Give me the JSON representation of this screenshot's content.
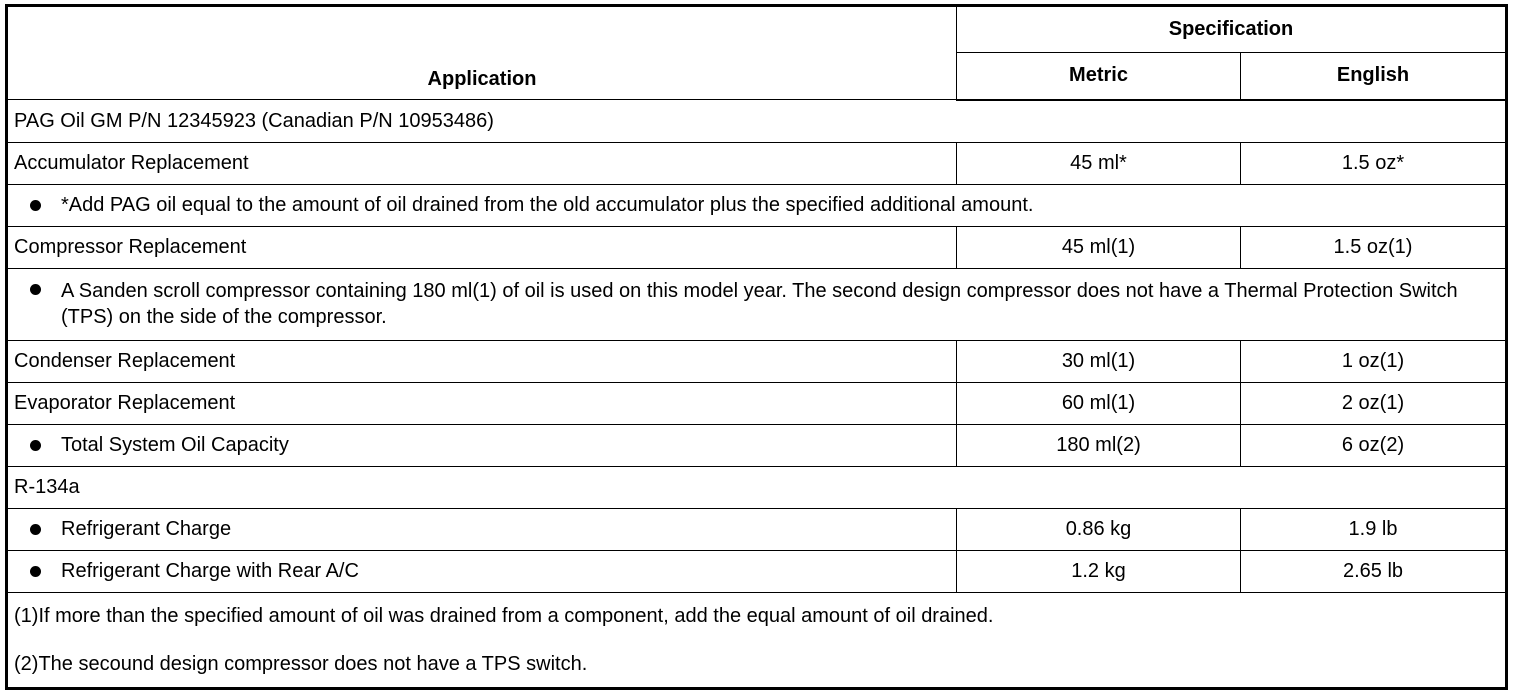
{
  "header": {
    "application": "Application",
    "specification": "Specification",
    "metric": "Metric",
    "english": "English"
  },
  "sections": {
    "pag": "PAG Oil GM P/N 12345923 (Canadian P/N 10953486)",
    "r134a": "R-134a"
  },
  "rows": [
    {
      "app": "Accumulator Replacement",
      "metric": "45 ml*",
      "english": "1.5 oz*"
    },
    {
      "app": "Compressor Replacement",
      "metric": "45 ml(1)",
      "english": "1.5 oz(1)"
    },
    {
      "app": "Condenser Replacement",
      "metric": "30 ml(1)",
      "english": "1 oz(1)"
    },
    {
      "app": "Evaporator Replacement",
      "metric": "60 ml(1)",
      "english": "2 oz(1)"
    },
    {
      "app": "Total System Oil Capacity",
      "metric": "180 ml(2)",
      "english": "6 oz(2)"
    },
    {
      "app": "Refrigerant Charge",
      "metric": "0.86 kg",
      "english": "1.9 lb"
    },
    {
      "app": "Refrigerant Charge with Rear A/C",
      "metric": "1.2 kg",
      "english": "2.65 lb"
    }
  ],
  "bullet_notes": {
    "accumulator": "*Add PAG oil equal to the amount of oil drained from the old accumulator plus the specified additional amount.",
    "compressor": "A Sanden scroll compressor containing 180 ml(1) of oil is used on this model year. The second design compressor does not have a Thermal Protection Switch (TPS) on the side of the compressor."
  },
  "footnotes": [
    "(1)If more than the specified amount of oil was drained from a component, add the equal amount of oil drained.",
    "(2)The secound design compressor does not have a TPS switch."
  ]
}
